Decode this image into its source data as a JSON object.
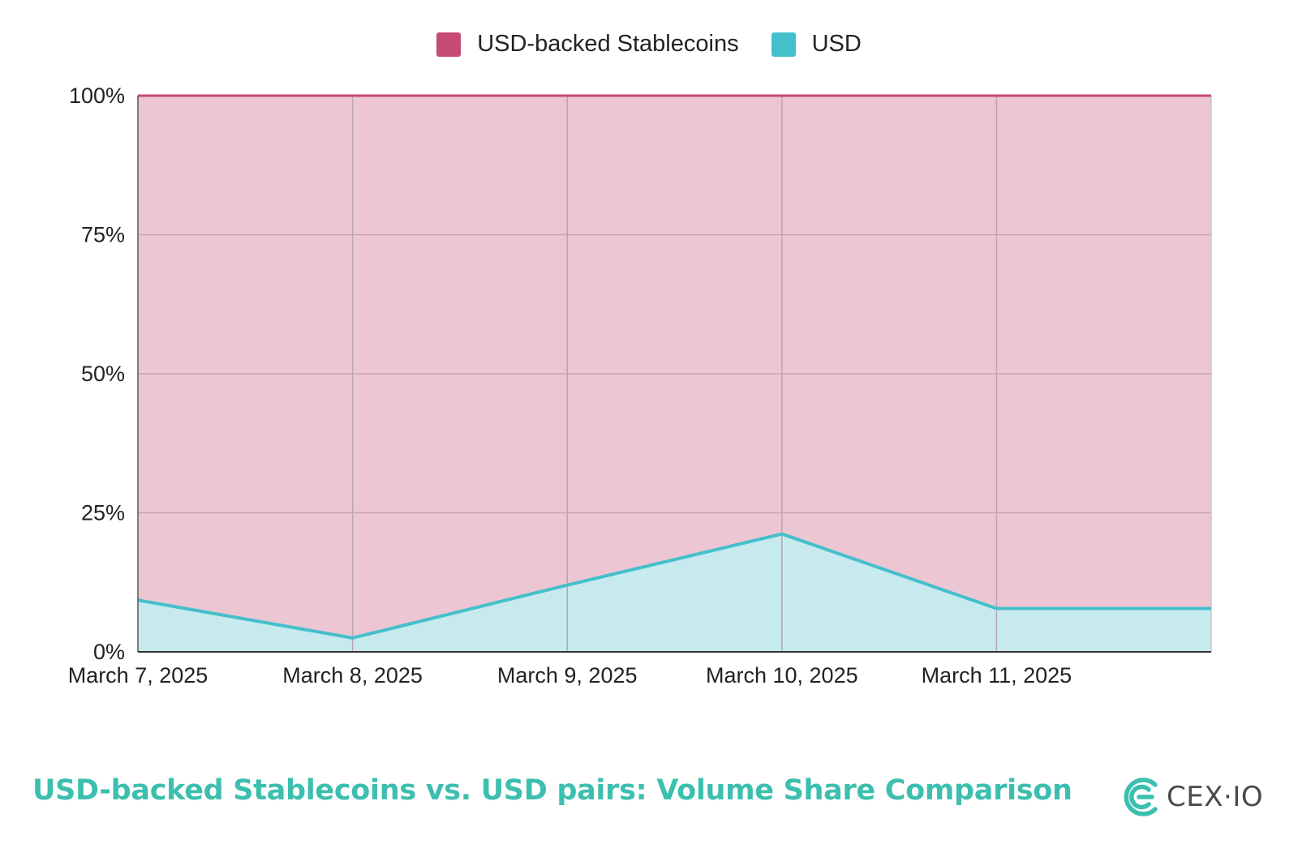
{
  "chart_data": {
    "type": "area",
    "stacked": "percent",
    "title": "USD-backed Stablecoins vs. USD pairs: Volume Share Comparison",
    "xlabel": "",
    "ylabel": "",
    "x": [
      "2025-03-07",
      "2025-03-08",
      "2025-03-09",
      "2025-03-10",
      "2025-03-11",
      "2025-03-12"
    ],
    "x_tick_labels": [
      "March 7, 2025",
      "March 8, 2025",
      "March 9, 2025",
      "March 10, 2025",
      "March 11, 2025"
    ],
    "y_tick_labels": [
      "0%",
      "25%",
      "50%",
      "75%",
      "100%"
    ],
    "ylim": [
      0,
      100
    ],
    "grid": true,
    "legend_position": "top-center",
    "series": [
      {
        "name": "USD",
        "color": "#45bfcb",
        "fill": "#c6eaee",
        "values": [
          9.3,
          2.5,
          12,
          21.2,
          7.8,
          7.8
        ]
      },
      {
        "name": "USD-backed Stablecoins",
        "color": "#c64a74",
        "fill": "#edc6d3",
        "values": [
          90.7,
          97.5,
          88,
          78.8,
          92.2,
          92.2
        ]
      }
    ]
  },
  "legend": [
    {
      "label": "USD-backed Stablecoins",
      "color": "#c64a74"
    },
    {
      "label": "USD",
      "color": "#45bfcb"
    }
  ],
  "brand": {
    "name": "CEX·IO",
    "color": "#3cbfae"
  }
}
